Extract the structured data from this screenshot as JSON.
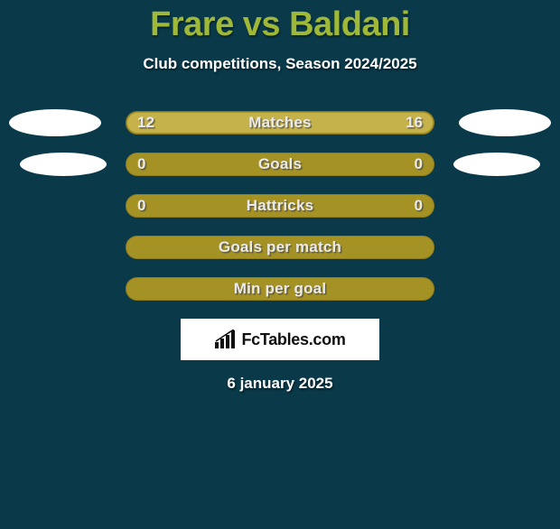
{
  "title": "Frare vs Baldani",
  "subtitle": "Club competitions, Season 2024/2025",
  "date": "6 january 2025",
  "colors": {
    "background": "#0a3a4a",
    "title": "#9fb838",
    "bar_bg": "#a59224",
    "bar_fill": "#c5b24a",
    "bar_border": "#8f7d1e",
    "text_light": "#eaeaea",
    "white": "#ffffff"
  },
  "brand": {
    "text": "FcTables.com"
  },
  "rows": [
    {
      "label": "Matches",
      "left": "12",
      "right": "16",
      "left_pct": 42.8,
      "right_pct": 57.2,
      "show_values": true,
      "show_ellipses": true,
      "ellipse_size": "big"
    },
    {
      "label": "Goals",
      "left": "0",
      "right": "0",
      "left_pct": 0,
      "right_pct": 0,
      "show_values": true,
      "show_ellipses": true,
      "ellipse_size": "small"
    },
    {
      "label": "Hattricks",
      "left": "0",
      "right": "0",
      "left_pct": 0,
      "right_pct": 0,
      "show_values": true,
      "show_ellipses": false
    },
    {
      "label": "Goals per match",
      "left": "",
      "right": "",
      "left_pct": 0,
      "right_pct": 0,
      "show_values": false,
      "show_ellipses": false
    },
    {
      "label": "Min per goal",
      "left": "",
      "right": "",
      "left_pct": 0,
      "right_pct": 0,
      "show_values": false,
      "show_ellipses": false
    }
  ]
}
